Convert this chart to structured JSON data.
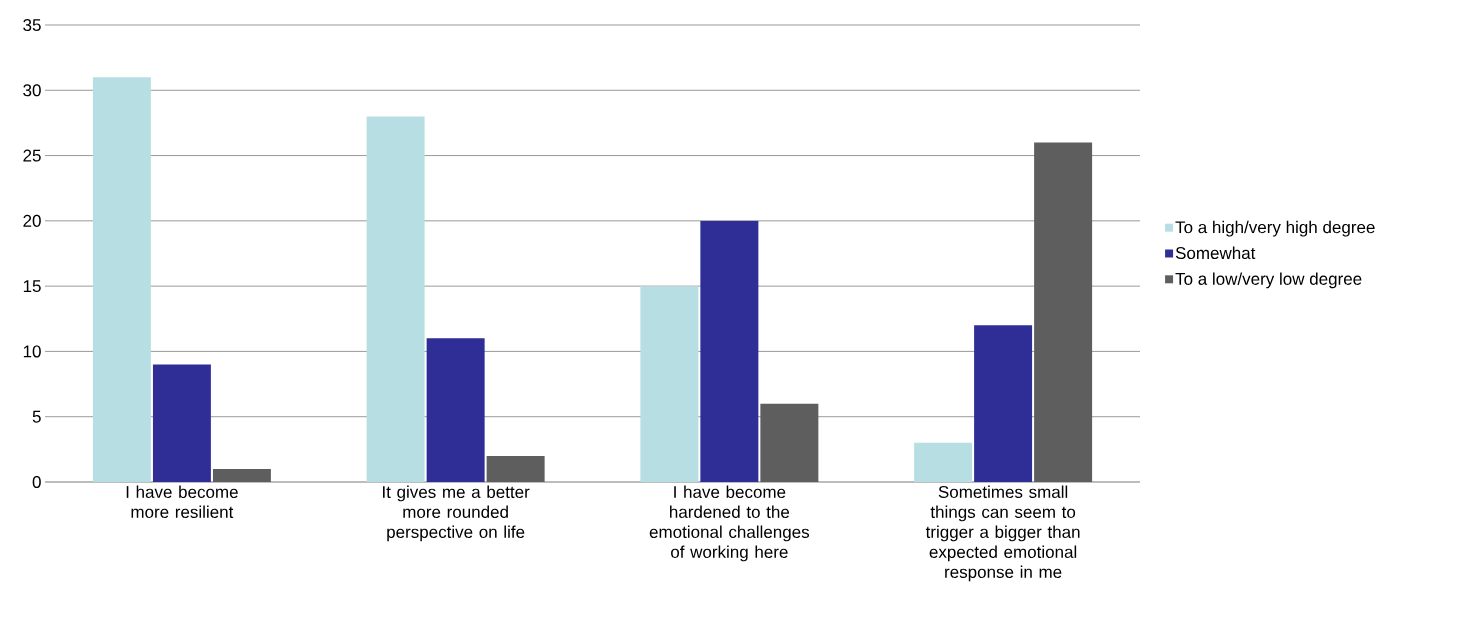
{
  "chart_data": {
    "type": "bar",
    "categories": [
      "I have become more resilient",
      "It gives me a better more rounded perspective on life",
      "I have become hardened to the emotional challenges of working here",
      "Sometimes small things can seem to trigger a bigger than expected emotional response in me"
    ],
    "series": [
      {
        "name": "To a high/very high degree",
        "color": "#b7dfe3",
        "values": [
          31,
          28,
          15,
          3
        ]
      },
      {
        "name": "Somewhat",
        "color": "#2e2e96",
        "values": [
          9,
          11,
          20,
          12
        ]
      },
      {
        "name": "To a low/very low degree",
        "color": "#5e5e5e",
        "values": [
          1,
          2,
          6,
          26
        ]
      }
    ],
    "ylim": [
      0,
      35
    ],
    "yticks": [
      0,
      5,
      10,
      15,
      20,
      25,
      30,
      35
    ],
    "grid": "y",
    "legend": "right"
  }
}
